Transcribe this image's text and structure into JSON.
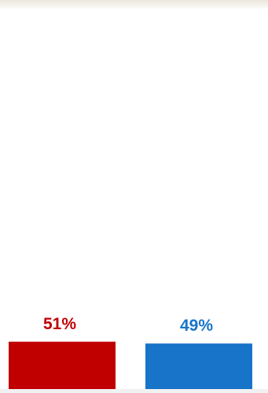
{
  "chart_data": {
    "type": "bar",
    "categories": [
      "",
      ""
    ],
    "values": [
      51,
      49
    ],
    "value_labels": [
      "51%",
      "49%"
    ],
    "colors": [
      "#c00000",
      "#1874c8"
    ],
    "title": "",
    "xlabel": "",
    "ylabel": "",
    "ylim": [
      0,
      100
    ],
    "grid": false,
    "legend": "none"
  }
}
